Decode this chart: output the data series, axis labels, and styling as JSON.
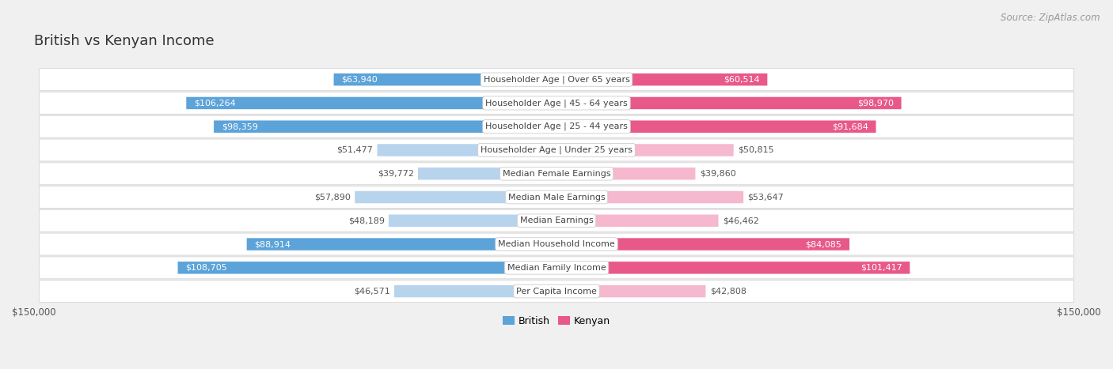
{
  "title": "British vs Kenyan Income",
  "source": "Source: ZipAtlas.com",
  "categories": [
    "Per Capita Income",
    "Median Family Income",
    "Median Household Income",
    "Median Earnings",
    "Median Male Earnings",
    "Median Female Earnings",
    "Householder Age | Under 25 years",
    "Householder Age | 25 - 44 years",
    "Householder Age | 45 - 64 years",
    "Householder Age | Over 65 years"
  ],
  "british_values": [
    46571,
    108705,
    88914,
    48189,
    57890,
    39772,
    51477,
    98359,
    106264,
    63940
  ],
  "kenyan_values": [
    42808,
    101417,
    84085,
    46462,
    53647,
    39860,
    50815,
    91684,
    98970,
    60514
  ],
  "british_labels": [
    "$46,571",
    "$108,705",
    "$88,914",
    "$48,189",
    "$57,890",
    "$39,772",
    "$51,477",
    "$98,359",
    "$106,264",
    "$63,940"
  ],
  "kenyan_labels": [
    "$42,808",
    "$101,417",
    "$84,085",
    "$46,462",
    "$53,647",
    "$39,860",
    "$50,815",
    "$91,684",
    "$98,970",
    "$60,514"
  ],
  "british_color_light": "#b8d4ed",
  "british_color_dark": "#5ba3d9",
  "kenyan_color_light": "#f5b8ce",
  "kenyan_color_dark": "#e8598a",
  "large_threshold": 60000,
  "max_value": 150000,
  "background_color": "#f0f0f0",
  "row_bg_color": "#ffffff",
  "row_border_color": "#d8d8d8",
  "title_fontsize": 13,
  "label_fontsize": 8,
  "category_fontsize": 8,
  "legend_fontsize": 9,
  "source_fontsize": 8.5
}
